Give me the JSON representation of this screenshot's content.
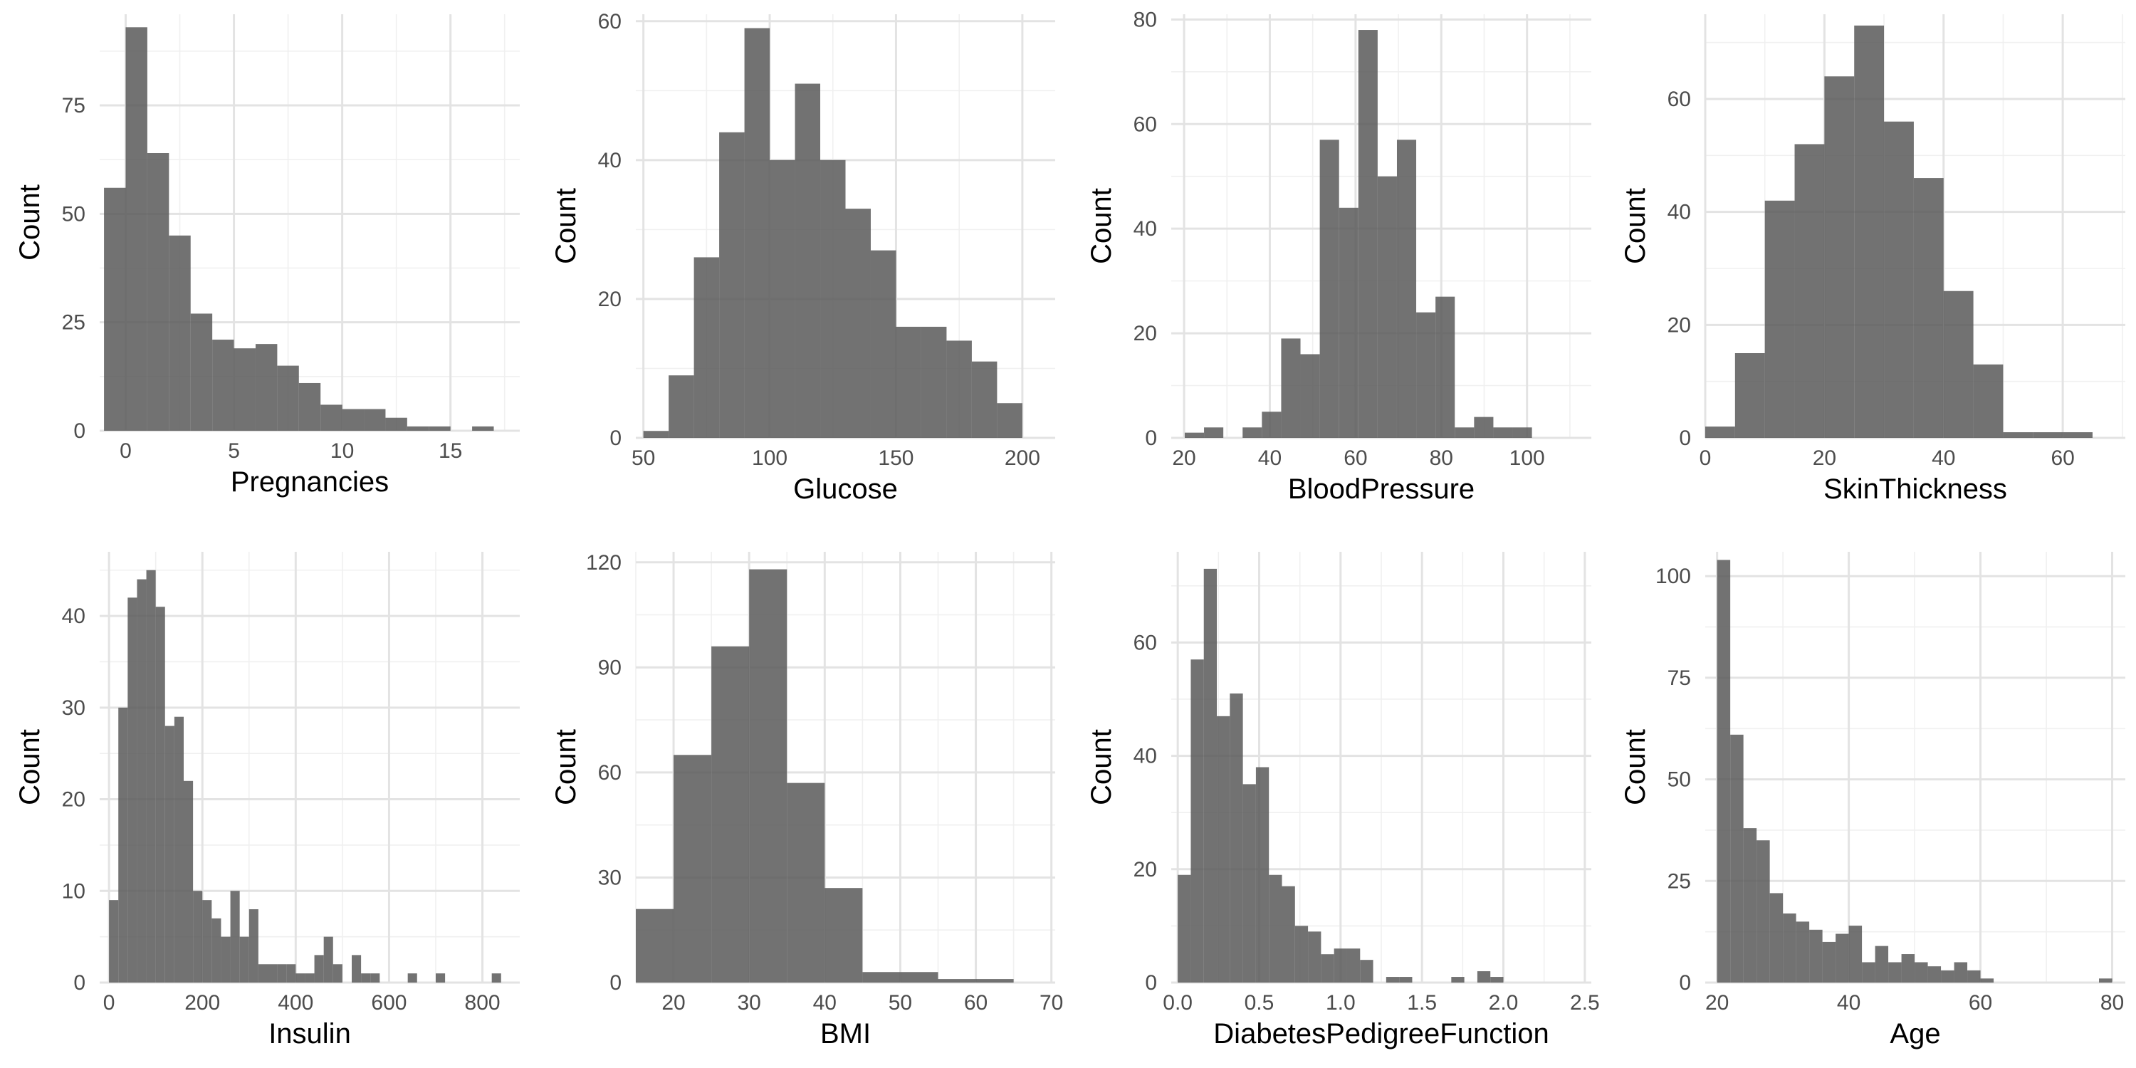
{
  "chart_data": [
    {
      "type": "bar",
      "xlabel": "Pregnancies",
      "ylabel": "Count",
      "xlim": [
        -1.2,
        18.2
      ],
      "ylim": [
        0,
        96
      ],
      "xticks": [
        0,
        5,
        10,
        15
      ],
      "yticks": [
        0,
        25,
        50,
        75
      ],
      "bin_width": 1,
      "bins": [
        [
          -0.5,
          56
        ],
        [
          0.5,
          93
        ],
        [
          1.5,
          64
        ],
        [
          2.5,
          45
        ],
        [
          3.5,
          27
        ],
        [
          4.5,
          21
        ],
        [
          5.5,
          19
        ],
        [
          6.5,
          20
        ],
        [
          7.5,
          15
        ],
        [
          8.5,
          11
        ],
        [
          9.5,
          6
        ],
        [
          10.5,
          5
        ],
        [
          11.5,
          5
        ],
        [
          12.5,
          3
        ],
        [
          13.5,
          1
        ],
        [
          14.5,
          1
        ],
        [
          15.5,
          0
        ],
        [
          16.5,
          1
        ]
      ]
    },
    {
      "type": "bar",
      "xlabel": "Glucose",
      "ylabel": "Count",
      "xlim": [
        47,
        213
      ],
      "ylim": [
        0,
        61
      ],
      "xticks": [
        50,
        100,
        150,
        200
      ],
      "yticks": [
        0,
        20,
        40,
        60
      ],
      "bin_width": 10,
      "bins": [
        [
          55,
          1
        ],
        [
          65,
          9
        ],
        [
          75,
          26
        ],
        [
          85,
          44
        ],
        [
          95,
          59
        ],
        [
          105,
          40
        ],
        [
          115,
          51
        ],
        [
          125,
          40
        ],
        [
          135,
          33
        ],
        [
          145,
          27
        ],
        [
          155,
          16
        ],
        [
          165,
          16
        ],
        [
          175,
          14
        ],
        [
          185,
          11
        ],
        [
          195,
          5
        ]
      ]
    },
    {
      "type": "bar",
      "xlabel": "BloodPressure",
      "ylabel": "Count",
      "xlim": [
        17,
        115
      ],
      "ylim": [
        0,
        81
      ],
      "xticks": [
        20,
        40,
        60,
        80,
        100
      ],
      "yticks": [
        0,
        20,
        40,
        60,
        80
      ],
      "bin_width": 4.5,
      "bins": [
        [
          22.4,
          1
        ],
        [
          26.9,
          2
        ],
        [
          31.4,
          0
        ],
        [
          35.9,
          2
        ],
        [
          40.4,
          5
        ],
        [
          44.9,
          19
        ],
        [
          49.4,
          16
        ],
        [
          53.9,
          57
        ],
        [
          58.4,
          44
        ],
        [
          62.9,
          78
        ],
        [
          67.4,
          50
        ],
        [
          71.9,
          57
        ],
        [
          76.4,
          24
        ],
        [
          80.9,
          27
        ],
        [
          85.4,
          2
        ],
        [
          89.9,
          4
        ],
        [
          94.4,
          2
        ],
        [
          98.9,
          2
        ]
      ]
    },
    {
      "type": "bar",
      "xlabel": "SkinThickness",
      "ylabel": "Count",
      "xlim": [
        0,
        70.5
      ],
      "ylim": [
        0,
        75
      ],
      "xticks": [
        0,
        20,
        40,
        60
      ],
      "yticks": [
        0,
        20,
        40,
        60
      ],
      "bin_width": 5,
      "bins": [
        [
          2.5,
          2
        ],
        [
          7.5,
          15
        ],
        [
          12.5,
          42
        ],
        [
          17.5,
          52
        ],
        [
          22.5,
          64
        ],
        [
          27.5,
          73
        ],
        [
          32.5,
          56
        ],
        [
          37.5,
          46
        ],
        [
          42.5,
          26
        ],
        [
          47.5,
          13
        ],
        [
          52.5,
          1
        ],
        [
          57.5,
          1
        ],
        [
          62.5,
          1
        ]
      ]
    },
    {
      "type": "bar",
      "xlabel": "Insulin",
      "ylabel": "Count",
      "xlim": [
        -20,
        880
      ],
      "ylim": [
        0,
        47
      ],
      "xticks": [
        0,
        200,
        400,
        600,
        800
      ],
      "yticks": [
        0,
        10,
        20,
        30,
        40
      ],
      "bin_width": 20,
      "bins": [
        [
          10,
          9
        ],
        [
          30,
          30
        ],
        [
          50,
          42
        ],
        [
          70,
          44
        ],
        [
          90,
          45
        ],
        [
          110,
          41
        ],
        [
          130,
          28
        ],
        [
          150,
          29
        ],
        [
          170,
          22
        ],
        [
          190,
          10
        ],
        [
          210,
          9
        ],
        [
          230,
          7
        ],
        [
          250,
          5
        ],
        [
          270,
          10
        ],
        [
          290,
          5
        ],
        [
          310,
          8
        ],
        [
          330,
          2
        ],
        [
          350,
          2
        ],
        [
          370,
          2
        ],
        [
          390,
          2
        ],
        [
          410,
          1
        ],
        [
          430,
          1
        ],
        [
          450,
          3
        ],
        [
          470,
          5
        ],
        [
          490,
          2
        ],
        [
          510,
          0
        ],
        [
          530,
          3
        ],
        [
          550,
          1
        ],
        [
          570,
          1
        ],
        [
          590,
          0
        ],
        [
          610,
          0
        ],
        [
          630,
          0
        ],
        [
          650,
          1
        ],
        [
          670,
          0
        ],
        [
          690,
          0
        ],
        [
          710,
          1
        ],
        [
          730,
          0
        ],
        [
          750,
          0
        ],
        [
          770,
          0
        ],
        [
          790,
          0
        ],
        [
          810,
          0
        ],
        [
          830,
          1
        ]
      ]
    },
    {
      "type": "bar",
      "xlabel": "BMI",
      "ylabel": "Count",
      "xlim": [
        15,
        70.5
      ],
      "ylim": [
        0,
        123
      ],
      "xticks": [
        20,
        30,
        40,
        50,
        60,
        70
      ],
      "yticks": [
        0,
        30,
        60,
        90,
        120
      ],
      "bin_width": 5,
      "bins": [
        [
          17.5,
          21
        ],
        [
          22.5,
          65
        ],
        [
          27.5,
          96
        ],
        [
          32.5,
          118
        ],
        [
          37.5,
          57
        ],
        [
          42.5,
          27
        ],
        [
          47.5,
          3
        ],
        [
          52.5,
          3
        ],
        [
          57.5,
          1
        ],
        [
          62.5,
          1
        ]
      ]
    },
    {
      "type": "bar",
      "xlabel": "DiabetesPedigreeFunction",
      "ylabel": "Count",
      "xlim": [
        -0.04,
        2.54
      ],
      "ylim": [
        0,
        76
      ],
      "xticks": [
        "0.0",
        "0.5",
        "1.0",
        "1.5",
        "2.0",
        "2.5"
      ],
      "yticks": [
        0,
        20,
        40,
        60
      ],
      "bin_width": 0.08,
      "bins": [
        [
          0.04,
          19
        ],
        [
          0.12,
          57
        ],
        [
          0.2,
          73
        ],
        [
          0.28,
          47
        ],
        [
          0.36,
          51
        ],
        [
          0.44,
          35
        ],
        [
          0.52,
          38
        ],
        [
          0.6,
          19
        ],
        [
          0.68,
          17
        ],
        [
          0.76,
          10
        ],
        [
          0.84,
          9
        ],
        [
          0.92,
          5
        ],
        [
          1.0,
          6
        ],
        [
          1.08,
          6
        ],
        [
          1.16,
          4
        ],
        [
          1.24,
          0
        ],
        [
          1.32,
          1
        ],
        [
          1.4,
          1
        ],
        [
          1.48,
          0
        ],
        [
          1.56,
          0
        ],
        [
          1.64,
          0
        ],
        [
          1.72,
          1
        ],
        [
          1.8,
          0
        ],
        [
          1.88,
          2
        ],
        [
          1.96,
          1
        ]
      ]
    },
    {
      "type": "bar",
      "xlabel": "Age",
      "ylabel": "Count",
      "xlim": [
        18.2,
        82
      ],
      "ylim": [
        0,
        106
      ],
      "xticks": [
        20,
        40,
        60,
        80
      ],
      "yticks": [
        0,
        25,
        50,
        75,
        100
      ],
      "bin_width": 2,
      "bins": [
        [
          21,
          104
        ],
        [
          23,
          61
        ],
        [
          25,
          38
        ],
        [
          27,
          35
        ],
        [
          29,
          22
        ],
        [
          31,
          17
        ],
        [
          33,
          15
        ],
        [
          35,
          13
        ],
        [
          37,
          10
        ],
        [
          39,
          12
        ],
        [
          41,
          14
        ],
        [
          43,
          5
        ],
        [
          45,
          9
        ],
        [
          47,
          5
        ],
        [
          49,
          7
        ],
        [
          51,
          5
        ],
        [
          53,
          4
        ],
        [
          55,
          3
        ],
        [
          57,
          5
        ],
        [
          59,
          3
        ],
        [
          61,
          1
        ],
        [
          63,
          0
        ],
        [
          65,
          0
        ],
        [
          67,
          0
        ],
        [
          69,
          0
        ],
        [
          71,
          0
        ],
        [
          73,
          0
        ],
        [
          75,
          0
        ],
        [
          77,
          0
        ],
        [
          79,
          1
        ]
      ]
    }
  ]
}
